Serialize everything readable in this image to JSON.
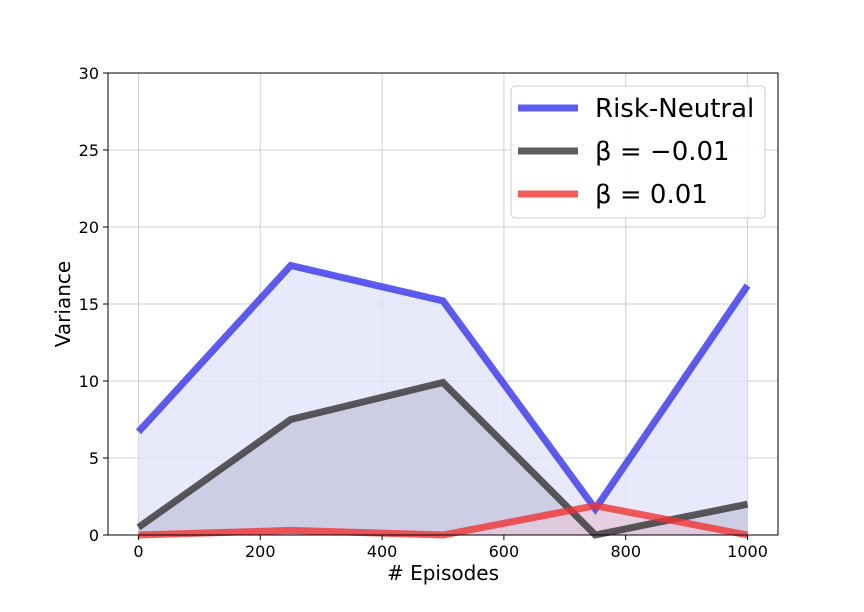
{
  "chart_data": {
    "type": "line",
    "xlabel": "# Episodes",
    "ylabel": "Variance",
    "xlim": [
      -50,
      1050
    ],
    "ylim": [
      0,
      30
    ],
    "xticks": [
      0,
      200,
      400,
      600,
      800,
      1000
    ],
    "yticks": [
      0,
      5,
      10,
      15,
      20,
      25,
      30
    ],
    "grid": true,
    "legend_position": "top-right",
    "x": [
      0,
      250,
      500,
      750,
      1000
    ],
    "series": [
      {
        "name": "Risk-Neutral",
        "color": "#3333ee",
        "fill": "#e4e4fb",
        "values": [
          6.7,
          17.5,
          15.2,
          1.7,
          16.2
        ]
      },
      {
        "name": "β = −0.01",
        "color": "#333333",
        "fill": "#c6c6dc",
        "values": [
          0.5,
          7.5,
          9.9,
          0.0,
          2.0
        ]
      },
      {
        "name": "β = 0.01",
        "color": "#f03333",
        "fill": "#e3c8d9",
        "values": [
          0.0,
          0.3,
          0.0,
          1.9,
          0.0
        ]
      }
    ]
  }
}
